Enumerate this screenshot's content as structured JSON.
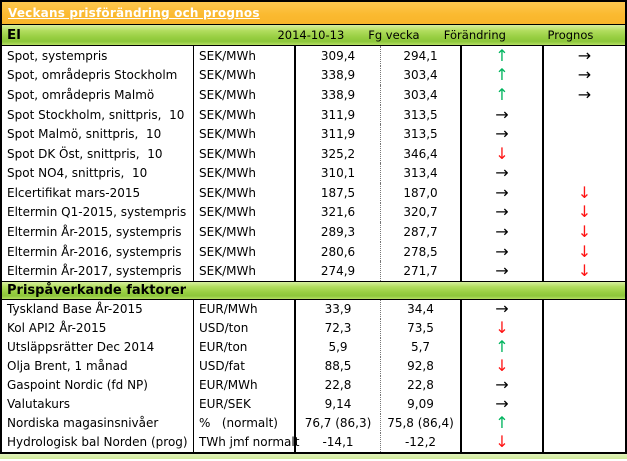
{
  "title": "Veckans prisförändring och prognos",
  "colors": {
    "title_bar": "#FBBA31",
    "section_bar_green": "#8CC63A",
    "arrow_up": "#00B45E",
    "arrow_down": "#FF1414",
    "arrow_right": "#000000",
    "bottom_strip": "#D6EBA6"
  },
  "columns": {
    "date": "2014-10-13",
    "prev_week": "Fg vecka",
    "change": "Förändring",
    "forecast": "Prognos"
  },
  "arrow_styles": {
    "up": {
      "glyph": "↑",
      "color": "#00B45E",
      "name": "up-arrow-icon"
    },
    "down": {
      "glyph": "↓",
      "color": "#FF1414",
      "name": "down-arrow-icon"
    },
    "right": {
      "glyph": "→",
      "color": "#000000",
      "name": "right-arrow-icon"
    }
  },
  "sections": [
    {
      "header": "El",
      "rows": [
        {
          "label": "Spot, systempris",
          "unit": "SEK/MWh",
          "current": "309,4",
          "prev": "294,1",
          "change": "up",
          "forecast": "right"
        },
        {
          "label": "Spot, områdepris Stockholm",
          "unit": "SEK/MWh",
          "current": "338,9",
          "prev": "303,4",
          "change": "up",
          "forecast": "right"
        },
        {
          "label": "Spot, områdepris Malmö",
          "unit": "SEK/MWh",
          "current": "338,9",
          "prev": "303,4",
          "change": "up",
          "forecast": "right"
        },
        {
          "label": "Spot Stockholm, snittpris,  10",
          "unit": "SEK/MWh",
          "current": "311,9",
          "prev": "313,5",
          "change": "right",
          "forecast": ""
        },
        {
          "label": "Spot Malmö, snittpris,  10",
          "unit": "SEK/MWh",
          "current": "311,9",
          "prev": "313,5",
          "change": "right",
          "forecast": ""
        },
        {
          "label": "Spot DK Öst, snittpris,  10",
          "unit": "SEK/MWh",
          "current": "325,2",
          "prev": "346,4",
          "change": "down",
          "forecast": ""
        },
        {
          "label": "Spot NO4, snittpris,  10",
          "unit": "SEK/MWh",
          "current": "310,1",
          "prev": "313,4",
          "change": "right",
          "forecast": ""
        },
        {
          "label": "Elcertifikat mars-2015",
          "unit": "SEK/MWh",
          "current": "187,5",
          "prev": "187,0",
          "change": "right",
          "forecast": "down"
        },
        {
          "label": "Eltermin Q1-2015, systempris",
          "unit": "SEK/MWh",
          "current": "321,6",
          "prev": "320,7",
          "change": "right",
          "forecast": "down"
        },
        {
          "label": "Eltermin År-2015, systempris",
          "unit": "SEK/MWh",
          "current": "289,3",
          "prev": "287,7",
          "change": "right",
          "forecast": "down"
        },
        {
          "label": "Eltermin År-2016, systempris",
          "unit": "SEK/MWh",
          "current": "280,6",
          "prev": "278,5",
          "change": "right",
          "forecast": "down"
        },
        {
          "label": "Eltermin År-2017, systempris",
          "unit": "SEK/MWh",
          "current": "274,9",
          "prev": "271,7",
          "change": "right",
          "forecast": "down"
        }
      ]
    },
    {
      "header": "Prispåverkande faktorer",
      "rows": [
        {
          "label": "Tyskland Base År-2015",
          "unit": "EUR/MWh",
          "current": "33,9",
          "prev": "34,4",
          "change": "right",
          "forecast": ""
        },
        {
          "label": "Kol API2 År-2015",
          "unit": "USD/ton",
          "current": "72,3",
          "prev": "73,5",
          "change": "down",
          "forecast": ""
        },
        {
          "label": "Utsläppsrätter Dec 2014",
          "unit": "EUR/ton",
          "current": "5,9",
          "prev": "5,7",
          "change": "up",
          "forecast": ""
        },
        {
          "label": "Olja Brent, 1 månad",
          "unit": "USD/fat",
          "current": "88,5",
          "prev": "92,8",
          "change": "down",
          "forecast": ""
        },
        {
          "label": "Gaspoint Nordic (fd NP)",
          "unit": "EUR/MWh",
          "current": "22,8",
          "prev": "22,8",
          "change": "right",
          "forecast": ""
        },
        {
          "label": "Valutakurs",
          "unit": "EUR/SEK",
          "current": "9,14",
          "prev": "9,09",
          "change": "right",
          "forecast": ""
        },
        {
          "label": "Nordiska magasinsnivåer",
          "unit": "%   (normalt)",
          "current": "76,7 (86,3)",
          "prev": "75,8 (86,4)",
          "change": "up",
          "forecast": ""
        },
        {
          "label": "Hydrologisk bal Norden (prog)",
          "unit": "TWh jmf normalt",
          "current": "-14,1",
          "prev": "-12,2",
          "change": "down",
          "forecast": ""
        }
      ]
    }
  ]
}
